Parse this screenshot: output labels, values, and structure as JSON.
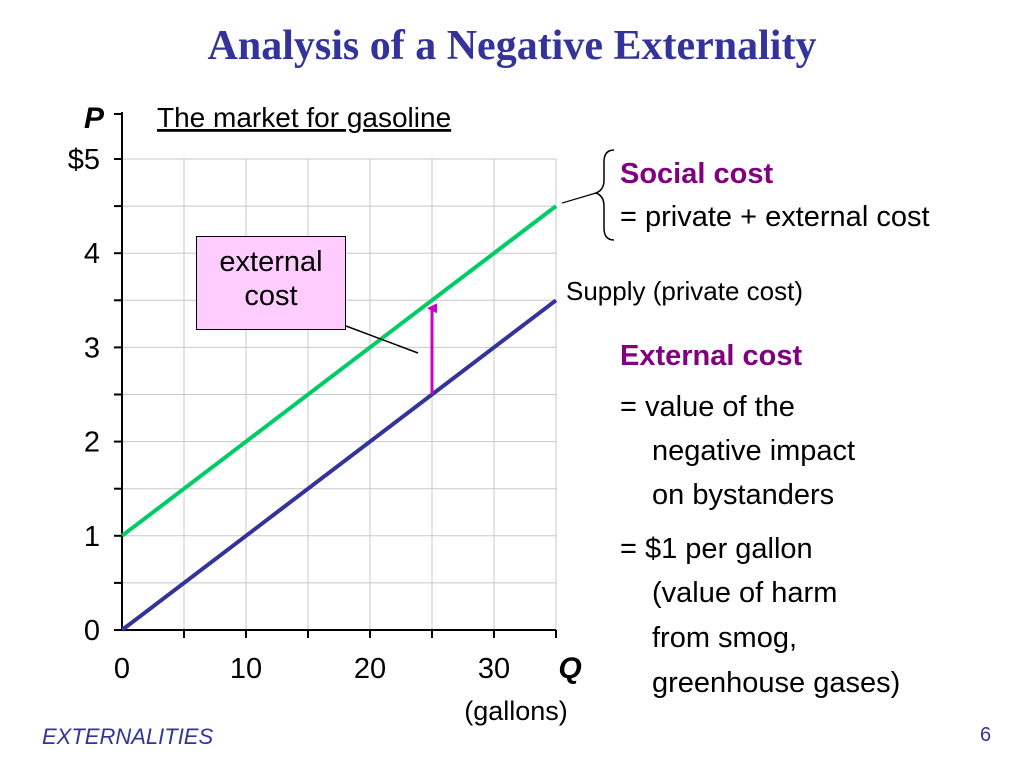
{
  "title": "Analysis of a Negative Externality",
  "footer": "EXTERNALITIES",
  "page_number": "6",
  "callout": {
    "line1": "external",
    "line2": "cost"
  },
  "social_cost": {
    "heading": "Social cost",
    "definition": "= private + external cost"
  },
  "supply_label": "Supply (private cost)",
  "external_cost": {
    "heading": "External cost",
    "def1_line1": "= value of the",
    "def1_line2": "negative impact",
    "def1_line3": "on bystanders",
    "def2_line1": "= $1 per gallon",
    "def2_line2": "(value of harm",
    "def2_line3": "from smog,",
    "def2_line4": "greenhouse gases)"
  },
  "colors": {
    "title": "#333399",
    "social_cost_line": "#00cc66",
    "supply_line": "#333399",
    "arrow": "#cc00cc",
    "callout_bg": "#ffccff",
    "heading": "#800080"
  },
  "chart_data": {
    "type": "line",
    "title": "The market for gasoline",
    "ylabel": "P",
    "xlabel": "Q",
    "xunit": "(gallons)",
    "xlim": [
      0,
      35
    ],
    "ylim": [
      0,
      5
    ],
    "x_ticks": [
      "0",
      "10",
      "20",
      "30"
    ],
    "y_ticks": [
      "0",
      "1",
      "2",
      "3",
      "4",
      "$5"
    ],
    "grid": true,
    "series": [
      {
        "name": "Social cost",
        "color": "#00cc66",
        "x": [
          0,
          35
        ],
        "y": [
          1,
          4.5
        ]
      },
      {
        "name": "Supply (private cost)",
        "color": "#333399",
        "x": [
          0,
          35
        ],
        "y": [
          0,
          3.5
        ]
      }
    ],
    "annotation": {
      "label": "external cost",
      "x": 25,
      "y_from": 2.5,
      "y_to": 3.5,
      "color": "#cc00cc"
    }
  }
}
